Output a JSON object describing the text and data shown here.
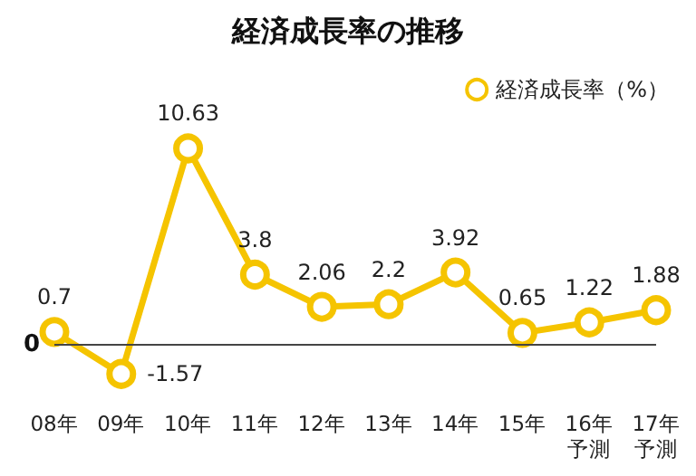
{
  "chart_data": {
    "type": "line",
    "title": "経済成長率の推移",
    "categories": [
      "08年",
      "09年",
      "10年",
      "11年",
      "12年",
      "13年",
      "14年",
      "15年",
      "16年予測",
      "17年予測"
    ],
    "series": [
      {
        "name": "経済成長率（%）",
        "color": "#f5c400",
        "values": [
          0.7,
          -1.57,
          10.63,
          3.8,
          2.06,
          2.2,
          3.92,
          0.65,
          1.22,
          1.88
        ]
      }
    ],
    "ref_lines": [
      {
        "axis": "y",
        "value": 0,
        "label": "0"
      }
    ],
    "legend": "top right",
    "marker": "circle",
    "data_labels": true
  }
}
